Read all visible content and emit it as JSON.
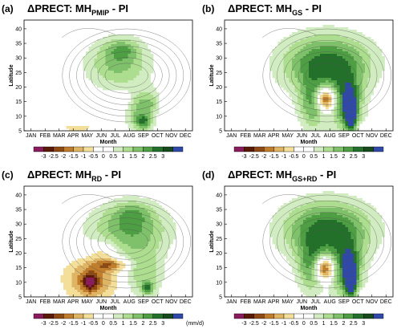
{
  "chart_data": [
    {
      "type": "heatmap",
      "letter": "(a)",
      "title": {
        "prefix": "ΔPRECT: MH",
        "sub": "PMIP",
        "suffix": " - PI"
      },
      "xlabel": "Month",
      "ylabel": "Latitude",
      "months": [
        "JAN",
        "FEB",
        "MAR",
        "APR",
        "MAY",
        "JUN",
        "JUL",
        "AUG",
        "SEP",
        "OCT",
        "NOV",
        "DEC"
      ],
      "yticks": [
        5,
        10,
        15,
        20,
        25,
        30,
        35,
        40
      ],
      "ylim": [
        5,
        43
      ],
      "blobs": [
        {
          "m": 7.2,
          "lat": 28,
          "sm": 1.6,
          "sl": 6,
          "v": 1.7
        },
        {
          "m": 7.5,
          "lat": 33,
          "sm": 0.8,
          "sl": 2.5,
          "v": 1.1
        },
        {
          "m": 8.8,
          "lat": 11,
          "sm": 0.7,
          "sl": 5,
          "v": 1.7
        },
        {
          "m": 9.0,
          "lat": 8,
          "sm": 0.35,
          "sl": 1.5,
          "v": 1.5
        },
        {
          "m": 9.6,
          "lat": 15,
          "sm": 0.5,
          "sl": 3,
          "v": 0.8
        },
        {
          "m": 4.3,
          "lat": 6,
          "sm": 0.9,
          "sl": 1.3,
          "v": -0.7
        },
        {
          "m": 7.6,
          "lat": 16,
          "sm": 0.3,
          "sl": 1.8,
          "v": -0.9
        },
        {
          "m": 10.8,
          "lat": 12,
          "sm": 0.5,
          "sl": 3,
          "v": -0.5
        }
      ]
    },
    {
      "type": "heatmap",
      "letter": "(b)",
      "title": {
        "prefix": "ΔPRECT: MH",
        "sub": "GS",
        "suffix": " - PI"
      },
      "xlabel": "Month",
      "ylabel": "Latitude",
      "months": [
        "JAN",
        "FEB",
        "MAR",
        "APR",
        "MAY",
        "JUN",
        "JUL",
        "AUG",
        "SEP",
        "OCT",
        "NOV",
        "DEC"
      ],
      "yticks": [
        5,
        10,
        15,
        20,
        25,
        30,
        35,
        40
      ],
      "ylim": [
        5,
        43
      ],
      "blobs": [
        {
          "m": 7.8,
          "lat": 28,
          "sm": 2.2,
          "sl": 7,
          "v": 2.8
        },
        {
          "m": 6.8,
          "lat": 14,
          "sm": 0.7,
          "sl": 6,
          "v": 2.0
        },
        {
          "m": 9.2,
          "lat": 14,
          "sm": 0.8,
          "sl": 7,
          "v": 2.4
        },
        {
          "m": 9.5,
          "lat": 11,
          "sm": 0.3,
          "sl": 5,
          "v": 2.6
        },
        {
          "m": 7.7,
          "lat": 16,
          "sm": 0.5,
          "sl": 3,
          "v": -3.6
        },
        {
          "m": 10.3,
          "lat": 6,
          "sm": 0.3,
          "sl": 1,
          "v": -0.6
        }
      ]
    },
    {
      "type": "heatmap",
      "letter": "(c)",
      "title": {
        "prefix": "ΔPRECT: MH",
        "sub": "RD",
        "suffix": " - PI"
      },
      "xlabel": "Month",
      "ylabel": "Latitude",
      "unit": "(mm/d)",
      "months": [
        "JAN",
        "FEB",
        "MAR",
        "APR",
        "MAY",
        "JUN",
        "JUL",
        "AUG",
        "SEP",
        "OCT",
        "NOV",
        "DEC"
      ],
      "yticks": [
        5,
        10,
        15,
        20,
        25,
        30,
        35,
        40
      ],
      "ylim": [
        5,
        43
      ],
      "blobs": [
        {
          "m": 8.0,
          "lat": 28,
          "sm": 2.0,
          "sl": 6,
          "v": 2.0
        },
        {
          "m": 8.2,
          "lat": 34,
          "sm": 1.0,
          "sl": 3,
          "v": 1.0
        },
        {
          "m": 9.0,
          "lat": 13,
          "sm": 1.0,
          "sl": 6,
          "v": 1.4
        },
        {
          "m": 9.3,
          "lat": 8,
          "sm": 0.3,
          "sl": 1.5,
          "v": 1.8
        },
        {
          "m": 5.3,
          "lat": 11,
          "sm": 1.3,
          "sl": 5,
          "v": -1.9
        },
        {
          "m": 5.2,
          "lat": 10,
          "sm": 0.35,
          "sl": 2,
          "v": -1.8
        },
        {
          "m": 6.8,
          "lat": 16,
          "sm": 0.9,
          "sl": 1.5,
          "v": -1.5
        },
        {
          "m": 6.2,
          "lat": 21,
          "sm": 0.7,
          "sl": 3,
          "v": -0.8
        }
      ]
    },
    {
      "type": "heatmap",
      "letter": "(d)",
      "title": {
        "prefix": "ΔPRECT: MH",
        "sub": "GS+RD",
        "suffix": " - PI"
      },
      "xlabel": "Month",
      "ylabel": "Latitude",
      "months": [
        "JAN",
        "FEB",
        "MAR",
        "APR",
        "MAY",
        "JUN",
        "JUL",
        "AUG",
        "SEP",
        "OCT",
        "NOV",
        "DEC"
      ],
      "yticks": [
        5,
        10,
        15,
        20,
        25,
        30,
        35,
        40
      ],
      "ylim": [
        5,
        43
      ],
      "blobs": [
        {
          "m": 7.8,
          "lat": 28,
          "sm": 2.2,
          "sl": 7,
          "v": 2.8
        },
        {
          "m": 6.7,
          "lat": 15,
          "sm": 0.7,
          "sl": 6,
          "v": 2.0
        },
        {
          "m": 9.2,
          "lat": 14,
          "sm": 0.8,
          "sl": 7,
          "v": 2.4
        },
        {
          "m": 9.5,
          "lat": 11,
          "sm": 0.3,
          "sl": 5,
          "v": 2.6
        },
        {
          "m": 7.6,
          "lat": 15,
          "sm": 0.5,
          "sl": 3,
          "v": -3.4
        },
        {
          "m": 10.2,
          "lat": 6,
          "sm": 0.3,
          "sl": 1,
          "v": -0.6
        }
      ]
    }
  ],
  "colorbar": {
    "labels": [
      "-3",
      "-2.5",
      "-2",
      "-1.5",
      "-1",
      "-0.5",
      "0",
      "0.5",
      "1",
      "1.5",
      "2",
      "2.5",
      "3"
    ],
    "levels": [
      -3,
      -2.5,
      -2,
      -1.5,
      -1,
      -0.5,
      0,
      0.5,
      1,
      1.5,
      2,
      2.5,
      3
    ],
    "colors": [
      "#8a1b5c",
      "#5b1a08",
      "#8e4a12",
      "#c07d2c",
      "#dfb565",
      "#f3df9a",
      "#ffffff",
      "#ffffff",
      "#d2ecc1",
      "#addd8e",
      "#7fc06a",
      "#4e9e44",
      "#22702a",
      "#144a1c",
      "#3048a8"
    ]
  }
}
